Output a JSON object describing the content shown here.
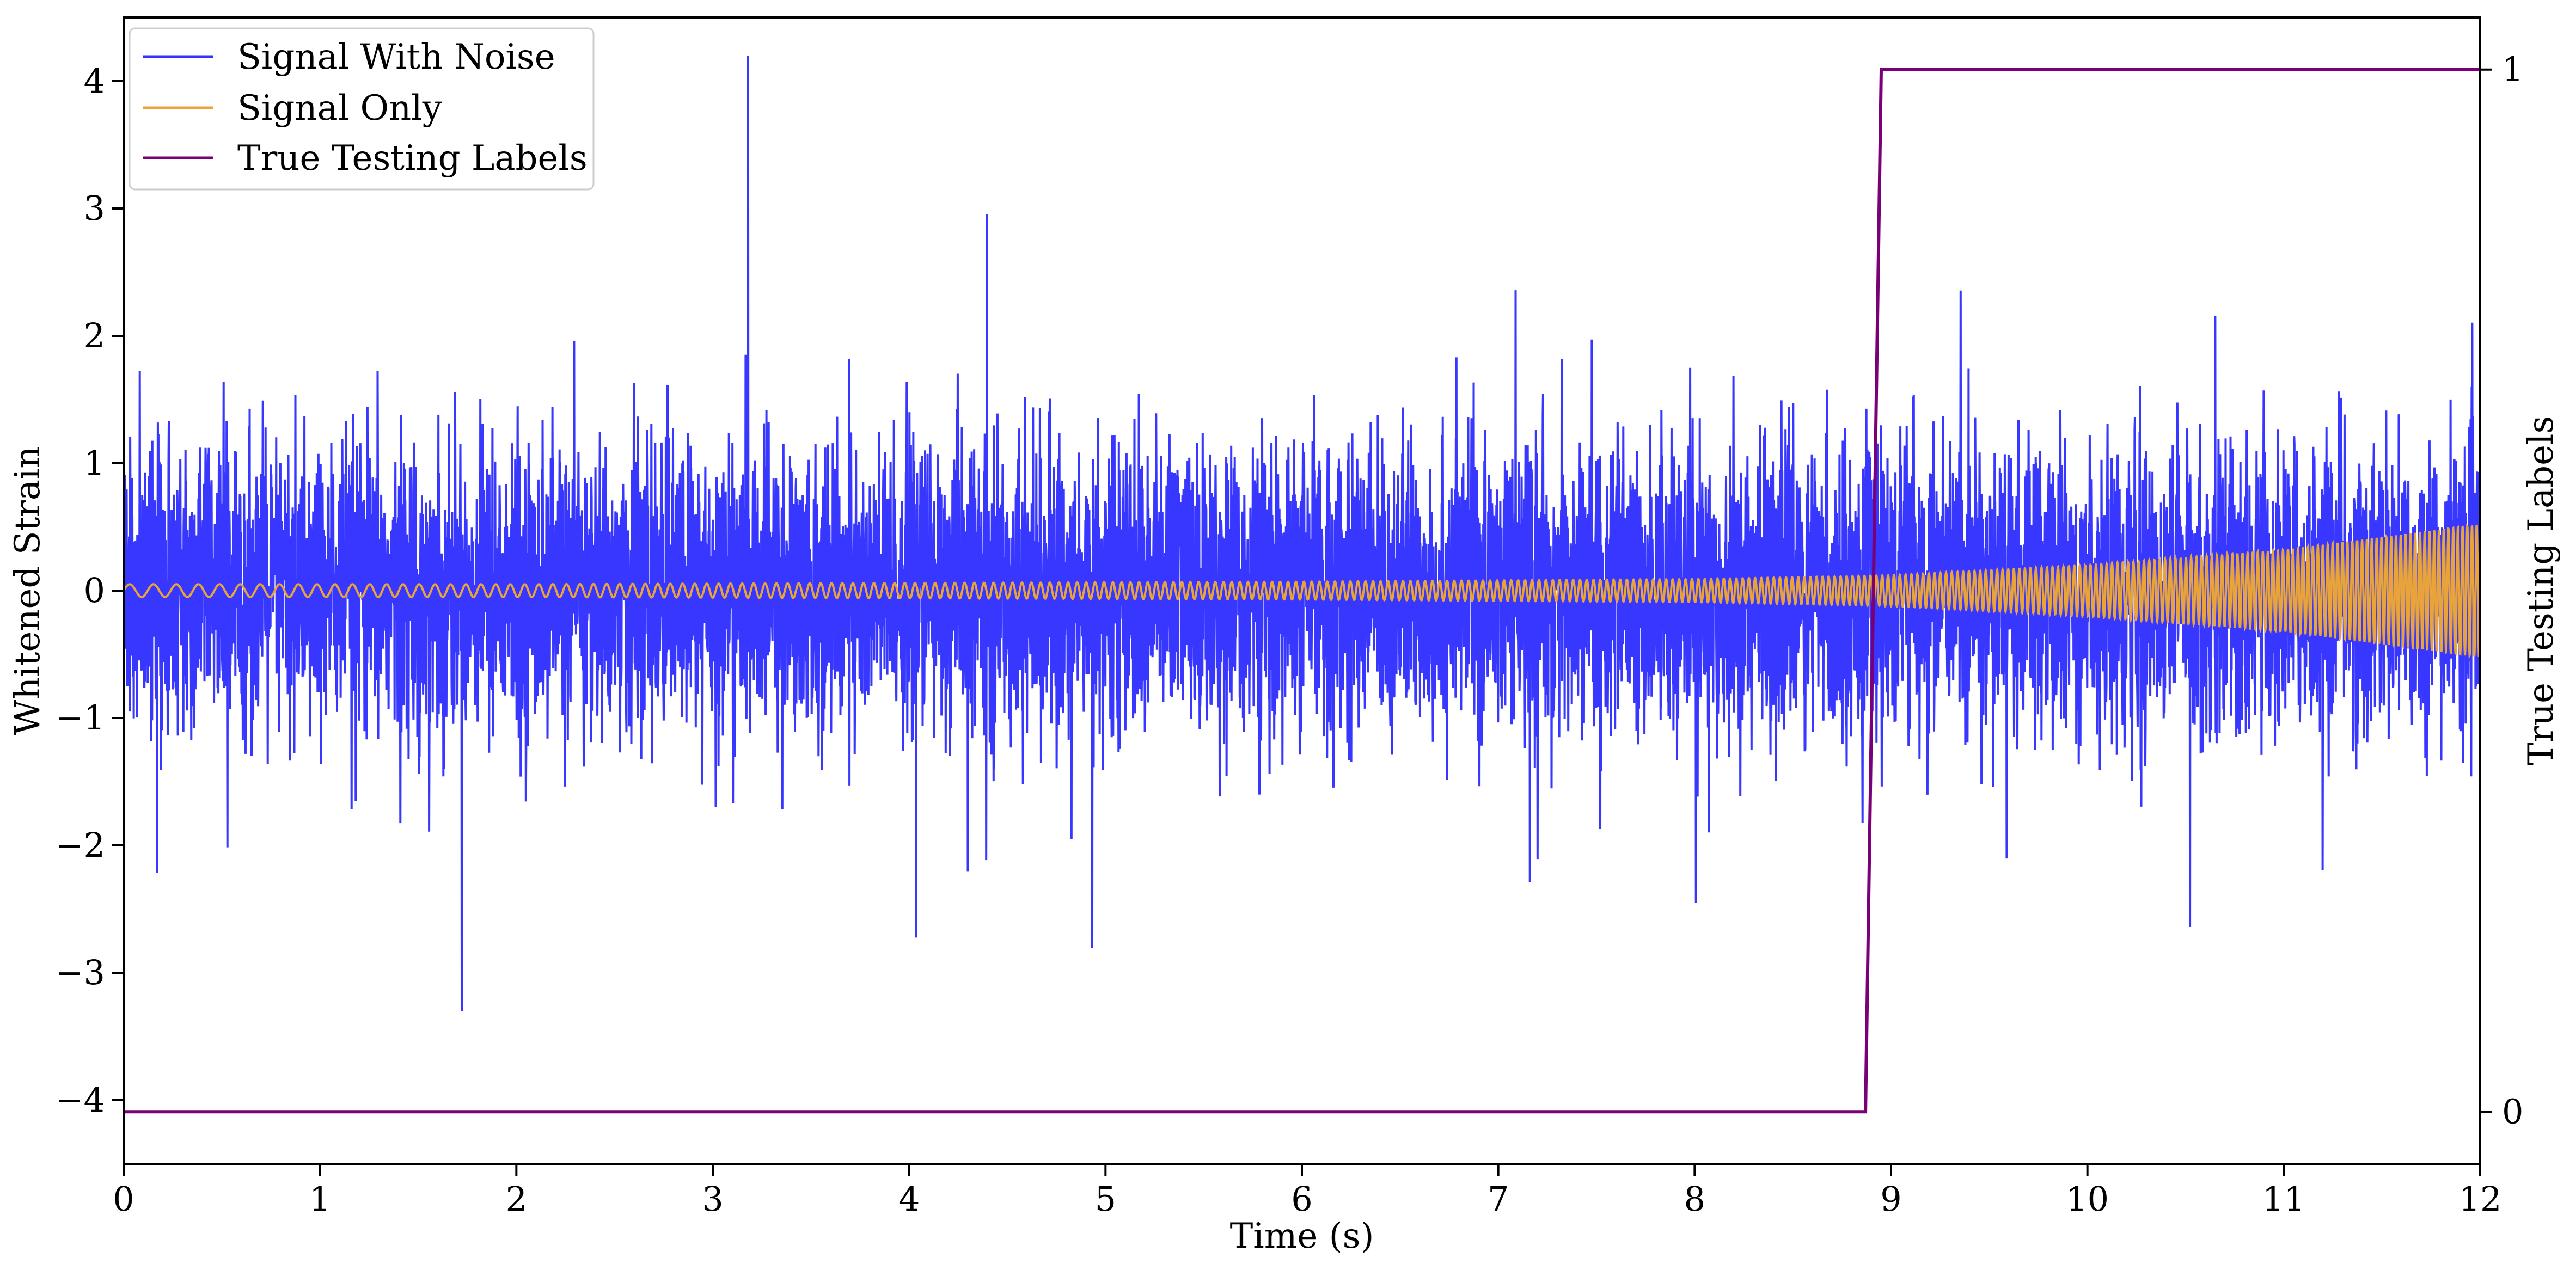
{
  "chart_data": {
    "type": "line",
    "title": "",
    "xlabel": "Time (s)",
    "ylabel": "Whitened Strain",
    "y2label": "True Testing Labels",
    "xlim": [
      0,
      12
    ],
    "ylim": [
      -4.5,
      4.5
    ],
    "y2lim": [
      -0.05,
      1.05
    ],
    "xticks": [
      "0",
      "1",
      "2",
      "3",
      "4",
      "5",
      "6",
      "7",
      "8",
      "9",
      "10",
      "11",
      "12"
    ],
    "yticks": [
      "4",
      "3",
      "2",
      "1",
      "0",
      "−1",
      "−2",
      "−3",
      "−4"
    ],
    "y2ticks": [
      "1",
      "0"
    ],
    "grid": false,
    "legend_position": "top-left",
    "series": [
      {
        "name": "Signal With Noise",
        "color": "#3333ff",
        "axis": "left",
        "description_values": {
          "noise_std": 0.55,
          "max": 4.2,
          "min": -3.3
        }
      },
      {
        "name": "Signal Only",
        "color": "#e8a33a",
        "axis": "left",
        "envelope": {
          "x": [
            0,
            2,
            4,
            6,
            8,
            9,
            10,
            11,
            12
          ],
          "amplitude": [
            0.05,
            0.05,
            0.06,
            0.07,
            0.09,
            0.12,
            0.2,
            0.32,
            0.52
          ]
        }
      },
      {
        "name": "True Testing Labels",
        "color": "#7a0077",
        "axis": "right",
        "x": [
          0,
          8.87,
          8.95,
          12
        ],
        "values": [
          0,
          0,
          1,
          1
        ]
      }
    ]
  }
}
